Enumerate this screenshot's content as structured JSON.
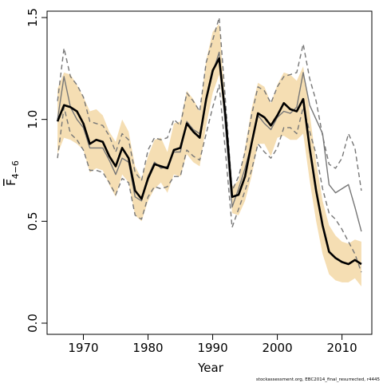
{
  "chart_data": {
    "type": "line",
    "xlabel": "Year",
    "ylabel_main": "F",
    "ylabel_sub": "4−6",
    "xlim": [
      1965,
      2014
    ],
    "ylim": [
      0,
      1.5
    ],
    "x_ticks": [
      1970,
      1980,
      1990,
      2000,
      2010
    ],
    "y_ticks": [
      0.0,
      0.5,
      1.0,
      1.5
    ],
    "y_tick_labels": [
      "0.0",
      "0.5",
      "1.0",
      "1.5"
    ],
    "grid": false,
    "x": [
      1966,
      1967,
      1968,
      1969,
      1970,
      1971,
      1972,
      1973,
      1974,
      1975,
      1976,
      1977,
      1978,
      1979,
      1980,
      1981,
      1982,
      1983,
      1984,
      1985,
      1986,
      1987,
      1988,
      1989,
      1990,
      1991,
      1992,
      1993,
      1994,
      1995,
      1996,
      1997,
      1998,
      1999,
      2000,
      2001,
      2002,
      2003,
      2004,
      2005,
      2006,
      2007,
      2008,
      2009,
      2010,
      2011,
      2012,
      2013
    ],
    "series": [
      {
        "role": "band",
        "color": "#f5deb3",
        "lower": [
          0.83,
          0.91,
          0.9,
          0.88,
          0.85,
          0.74,
          0.76,
          0.75,
          0.68,
          0.62,
          0.73,
          0.69,
          0.53,
          0.5,
          0.6,
          0.66,
          0.69,
          0.64,
          0.73,
          0.72,
          0.83,
          0.79,
          0.77,
          0.97,
          1.13,
          1.22,
          0.96,
          0.54,
          0.53,
          0.6,
          0.72,
          0.88,
          0.88,
          0.82,
          0.91,
          0.92,
          0.9,
          0.9,
          0.93,
          0.7,
          0.5,
          0.34,
          0.24,
          0.21,
          0.2,
          0.2,
          0.22,
          0.18
        ],
        "upper": [
          1.15,
          1.23,
          1.22,
          1.17,
          1.11,
          1.04,
          1.05,
          1.02,
          0.94,
          0.89,
          1.0,
          0.94,
          0.77,
          0.71,
          0.82,
          0.9,
          0.91,
          0.84,
          0.98,
          0.99,
          1.14,
          1.1,
          1.04,
          1.29,
          1.43,
          1.47,
          1.05,
          0.67,
          0.7,
          0.86,
          1.05,
          1.18,
          1.16,
          1.08,
          1.17,
          1.23,
          1.22,
          1.19,
          1.26,
          1.03,
          0.79,
          0.6,
          0.48,
          0.43,
          0.4,
          0.39,
          0.41,
          0.4
        ]
      },
      {
        "role": "estimate",
        "color": "#000000",
        "values": [
          0.99,
          1.07,
          1.06,
          1.04,
          0.98,
          0.88,
          0.9,
          0.89,
          0.82,
          0.77,
          0.86,
          0.81,
          0.65,
          0.61,
          0.71,
          0.78,
          0.77,
          0.76,
          0.85,
          0.86,
          0.98,
          0.94,
          0.91,
          1.1,
          1.24,
          1.3,
          1.01,
          0.62,
          0.63,
          0.72,
          0.88,
          1.03,
          1.01,
          0.97,
          1.02,
          1.08,
          1.05,
          1.04,
          1.1,
          0.86,
          0.65,
          0.48,
          0.35,
          0.32,
          0.3,
          0.29,
          0.31,
          0.29
        ]
      },
      {
        "role": "previous_estimate",
        "color": "#777777",
        "values": [
          1.0,
          1.21,
          1.06,
          1.0,
          0.96,
          0.86,
          0.86,
          0.86,
          0.8,
          0.73,
          0.81,
          0.79,
          0.62,
          0.6,
          0.72,
          0.79,
          0.76,
          0.77,
          0.84,
          0.84,
          0.99,
          0.95,
          0.93,
          1.09,
          1.23,
          1.33,
          0.95,
          0.57,
          0.66,
          0.76,
          0.88,
          1.02,
          0.98,
          0.95,
          1.01,
          1.04,
          1.03,
          1.06,
          1.23,
          1.07,
          1.0,
          0.93,
          0.68,
          0.64,
          0.66,
          0.68,
          0.57,
          0.45
        ]
      },
      {
        "role": "previous_upper",
        "color": "#777777",
        "dashed": true,
        "values": [
          1.09,
          1.35,
          1.21,
          1.17,
          1.11,
          0.99,
          0.98,
          0.97,
          0.92,
          0.84,
          0.93,
          0.9,
          0.74,
          0.7,
          0.85,
          0.91,
          0.9,
          0.91,
          1.0,
          0.97,
          1.13,
          1.09,
          1.04,
          1.28,
          1.39,
          1.5,
          1.08,
          0.65,
          0.72,
          0.84,
          1.02,
          1.16,
          1.14,
          1.08,
          1.16,
          1.21,
          1.22,
          1.23,
          1.37,
          1.2,
          1.09,
          0.92,
          0.78,
          0.76,
          0.81,
          0.93,
          0.86,
          0.65
        ]
      },
      {
        "role": "previous_lower",
        "color": "#777777",
        "dashed": true,
        "values": [
          0.81,
          1.06,
          0.93,
          0.9,
          0.85,
          0.75,
          0.75,
          0.74,
          0.69,
          0.63,
          0.71,
          0.69,
          0.53,
          0.51,
          0.62,
          0.67,
          0.66,
          0.67,
          0.72,
          0.72,
          0.85,
          0.82,
          0.8,
          0.93,
          1.06,
          1.17,
          0.83,
          0.47,
          0.56,
          0.65,
          0.75,
          0.88,
          0.84,
          0.81,
          0.86,
          0.96,
          0.96,
          0.93,
          1.06,
          0.94,
          0.83,
          0.66,
          0.54,
          0.51,
          0.46,
          0.4,
          0.34,
          0.25
        ]
      }
    ]
  },
  "footer": {
    "credit": "stockassessment.org, EBC2014_final_resurrected, r4445"
  }
}
